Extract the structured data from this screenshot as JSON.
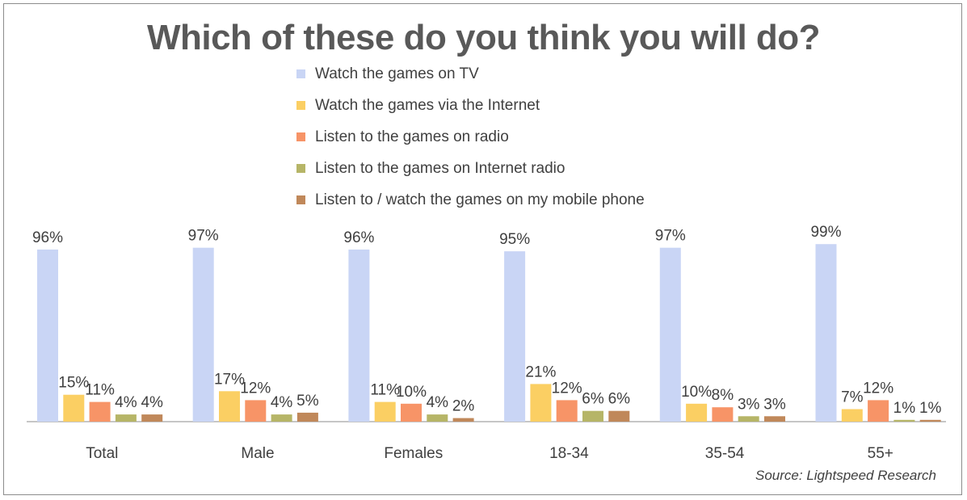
{
  "chart_data": {
    "type": "bar",
    "title": "Which of these do you think you will do?",
    "categories": [
      "Total",
      "Male",
      "Females",
      "18-34",
      "35-54",
      "55+"
    ],
    "series": [
      {
        "name": "Watch the games on TV",
        "color": "#c9d5f5",
        "values": [
          96,
          97,
          96,
          95,
          97,
          99
        ],
        "labels": [
          "96%",
          "97%",
          "96%",
          "95%",
          "97%",
          "99%"
        ]
      },
      {
        "name": "Watch the games via the Internet",
        "color": "#fbcf63",
        "values": [
          15,
          17,
          11,
          21,
          10,
          7
        ],
        "labels": [
          "15%",
          "17%",
          "11%",
          "21%",
          "10%",
          "7%"
        ]
      },
      {
        "name": "Listen to the games on radio",
        "color": "#f79467",
        "values": [
          11,
          12,
          10,
          12,
          8,
          12
        ],
        "labels": [
          "11%",
          "12%",
          "10%",
          "12%",
          "8%",
          "12%"
        ]
      },
      {
        "name": "Listen to the games on Internet radio",
        "color": "#b6b567",
        "values": [
          4,
          4,
          4,
          6,
          3,
          1
        ],
        "labels": [
          "4%",
          "4%",
          "4%",
          "6%",
          "3%",
          "1%"
        ]
      },
      {
        "name": "Listen to / watch the games on my mobile phone",
        "color": "#c0885a",
        "values": [
          4,
          5,
          2,
          6,
          3,
          1
        ],
        "labels": [
          "4%",
          "5%",
          "2%",
          "6%",
          "3%",
          "1%"
        ]
      }
    ],
    "ylim": [
      0,
      100
    ],
    "grid": false,
    "legend_position": "top"
  },
  "source": "Source: Lightspeed Research"
}
